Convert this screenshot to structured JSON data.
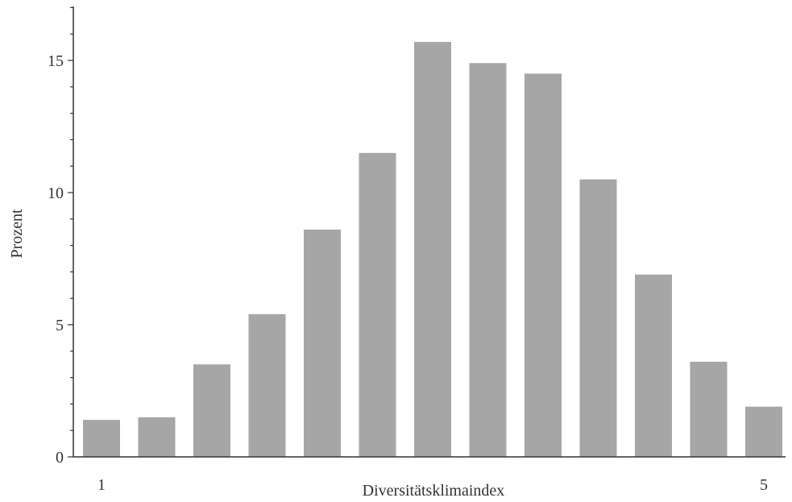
{
  "chart_data": {
    "type": "bar",
    "title": "",
    "xlabel": "Diversitätsklimaindex",
    "ylabel": "Prozent",
    "x_tick_labels": [
      "1",
      "5"
    ],
    "y_ticks": [
      0,
      5,
      10,
      15
    ],
    "ylim": [
      0,
      17
    ],
    "grid": false,
    "legend": "none",
    "bar_color": "#a6a6a6",
    "series": [
      {
        "values": [
          1.4,
          1.5,
          3.5,
          5.4,
          8.6,
          11.5,
          15.7,
          14.9,
          14.5,
          10.5,
          6.9,
          3.6,
          1.9
        ]
      }
    ]
  }
}
